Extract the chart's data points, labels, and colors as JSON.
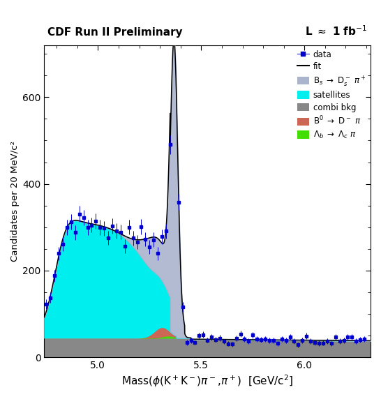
{
  "title_left": "CDF Run II Preliminary",
  "title_right": "L ≈ 1 fb⁻¹",
  "xlabel": "Mass(ϕ(K⁺K⁻)π⁻,π⁺)  [GeV/c²]",
  "ylabel": "Candidates per 20 MeV/c²",
  "xlim": [
    4.74,
    6.32
  ],
  "ylim": [
    0,
    720
  ],
  "yticks": [
    0,
    200,
    400,
    600
  ],
  "xticks": [
    5.0,
    5.5,
    6.0
  ],
  "colors": {
    "data": "#0000cc",
    "fit": "#000000",
    "bs": "#aab4cc",
    "satellites": "#00eeee",
    "combi": "#888888",
    "b0": "#cc6655",
    "lambda": "#44dd00"
  },
  "background_color": "#ffffff",
  "axes_background": "#ffffff"
}
